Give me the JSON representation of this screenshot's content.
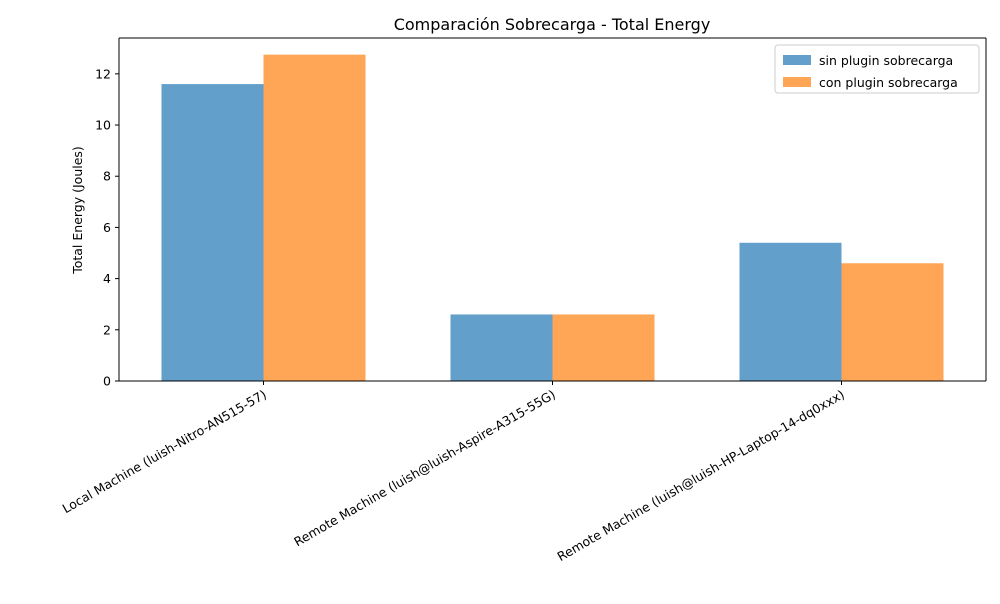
{
  "chart_data": {
    "type": "bar",
    "title": "Comparación Sobrecarga - Total Energy",
    "xlabel": "",
    "ylabel": "Total Energy (Joules)",
    "categories": [
      "Local Machine (luish-Nitro-AN515-57)",
      "Remote Machine (luish@luish-Aspire-A315-55G)",
      "Remote Machine (luish@luish-HP-Laptop-14-dq0xxx)"
    ],
    "series": [
      {
        "name": "sin plugin sobrecarga",
        "color": "#629fca",
        "values": [
          11.6,
          2.6,
          5.4
        ]
      },
      {
        "name": "con plugin sobrecarga",
        "color": "#ffa556",
        "values": [
          12.75,
          2.6,
          4.6
        ]
      }
    ],
    "ylim": [
      0,
      13.4
    ],
    "yticks": [
      0,
      2,
      4,
      6,
      8,
      10,
      12
    ],
    "grid": false,
    "legend_position": "top-right"
  }
}
